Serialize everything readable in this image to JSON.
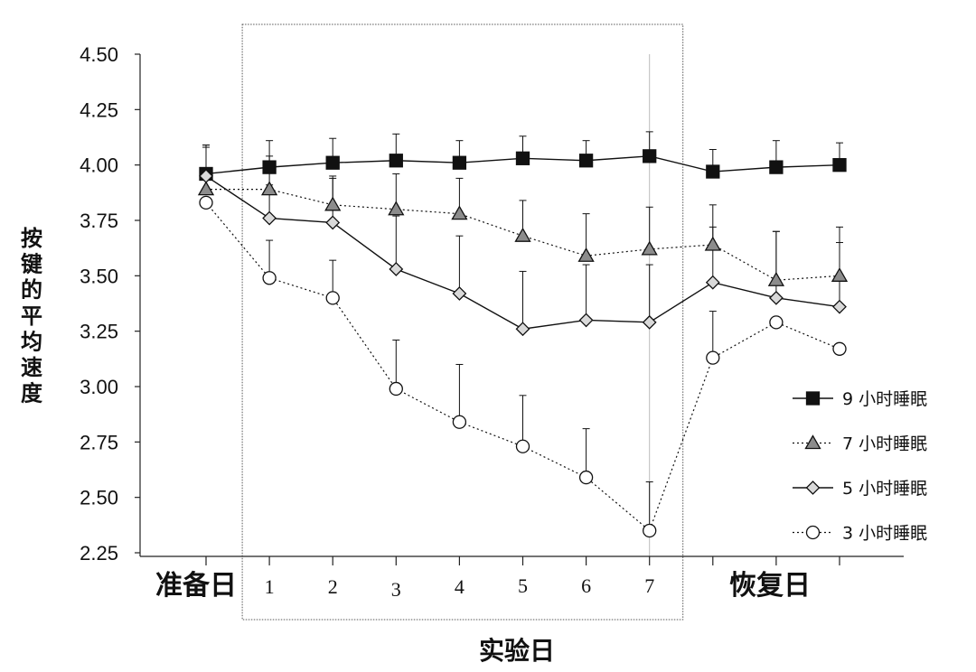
{
  "chart_data": {
    "type": "line",
    "xlabel": "实验日",
    "ylabel": "按键的平均速度",
    "ylim": [
      2.25,
      4.5
    ],
    "yticks": [
      "2.25",
      "2.50",
      "2.75",
      "3.00",
      "3.25",
      "3.50",
      "3.75",
      "4.00",
      "4.25",
      "4.50"
    ],
    "categories": [
      "准备日",
      "1",
      "2",
      "3",
      "4",
      "5",
      "6",
      "7",
      "恢复日",
      "",
      ""
    ],
    "grid": false,
    "legend_position": "right",
    "highlight_region": {
      "from": "1",
      "to": "7",
      "style": "dotted-box"
    },
    "series": [
      {
        "name": "9 小时睡眠",
        "marker": "square",
        "line": "solid",
        "color": "#111111",
        "values": [
          3.96,
          3.99,
          4.01,
          4.02,
          4.01,
          4.03,
          4.02,
          4.04,
          3.97,
          3.99,
          4.0
        ],
        "errors": [
          0.13,
          0.12,
          0.11,
          0.12,
          0.1,
          0.1,
          0.09,
          0.11,
          0.1,
          0.12,
          0.1
        ]
      },
      {
        "name": "7 小时睡眠",
        "marker": "triangle",
        "line": "dotted",
        "color": "#8c8c8c",
        "values": [
          3.89,
          3.89,
          3.82,
          3.8,
          3.78,
          3.68,
          3.59,
          3.62,
          3.64,
          3.48,
          3.5
        ],
        "errors": [
          0.2,
          0.15,
          0.13,
          0.16,
          0.16,
          0.16,
          0.19,
          0.19,
          0.18,
          0.22,
          0.22
        ]
      },
      {
        "name": "5 小时睡眠",
        "marker": "diamond",
        "line": "solid",
        "color": "#d9d9d9",
        "values": [
          3.95,
          3.76,
          3.74,
          3.53,
          3.42,
          3.26,
          3.3,
          3.29,
          3.47,
          3.4,
          3.36
        ],
        "errors": [
          0.13,
          0.15,
          0.2,
          0.24,
          0.26,
          0.26,
          0.25,
          0.26,
          0.25,
          0.3,
          0.29
        ]
      },
      {
        "name": "3 小时睡眠",
        "marker": "circle",
        "line": "dotted",
        "color": "#ffffff",
        "values": [
          3.83,
          3.49,
          3.4,
          2.99,
          2.84,
          2.73,
          2.59,
          2.35,
          3.13,
          3.29,
          3.17
        ],
        "errors": [
          0.0,
          0.17,
          0.17,
          0.22,
          0.26,
          0.23,
          0.22,
          0.22,
          0.21,
          0.0,
          0.0
        ]
      }
    ]
  }
}
